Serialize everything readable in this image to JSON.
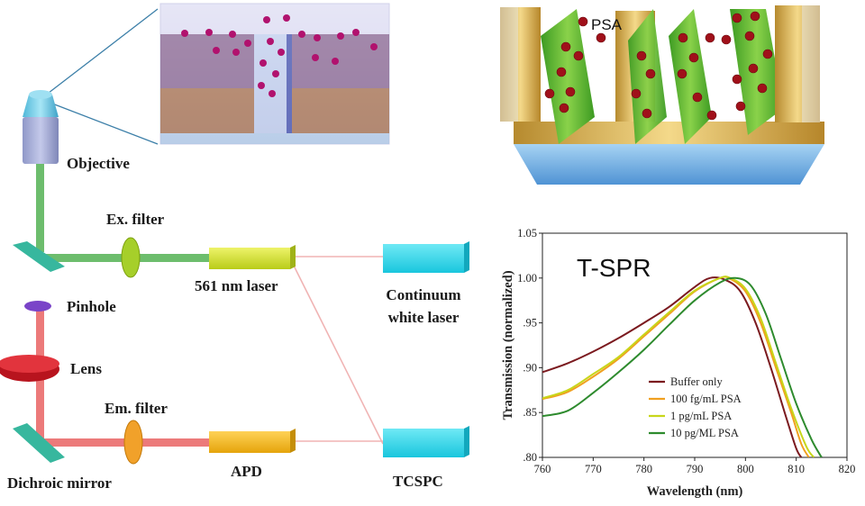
{
  "optics": {
    "objective": "Objective",
    "ex_filter": "Ex. filter",
    "laser_561": "561 nm laser",
    "continuum_1": "Continuum",
    "continuum_2": "white laser",
    "pinhole": "Pinhole",
    "lens": "Lens",
    "em_filter": "Em. filter",
    "dichroic": "Dichroic mirror",
    "apd": "APD",
    "tcspc": "TCSPC"
  },
  "nano": {
    "psa_label": "PSA"
  },
  "colors": {
    "buffer_only": "#7b1a1f",
    "psa_100fg": "#f0a020",
    "psa_1pg": "#c8d61a",
    "psa_10pg": "#2e8b2e"
  },
  "chart_data": {
    "type": "line",
    "title": "T-SPR",
    "xlabel": "Wavelength (nm)",
    "ylabel": "Transmission (normalized)",
    "xlim": [
      760,
      820
    ],
    "ylim": [
      0.8,
      1.05
    ],
    "x_ticks": [
      "760",
      "770",
      "780",
      "790",
      "800",
      "810",
      "820"
    ],
    "y_ticks": [
      "1.05",
      "1.00",
      ".95",
      ".90",
      ".85",
      ".80"
    ],
    "legend_position": "lower-right",
    "series": [
      {
        "name": "Buffer only",
        "color": "#7b1a1f",
        "x": [
          760,
          765,
          770,
          775,
          780,
          785,
          790,
          793,
          796,
          799,
          802,
          805,
          808,
          810,
          811
        ],
        "y": [
          0.895,
          0.905,
          0.918,
          0.933,
          0.95,
          0.968,
          0.99,
          1.0,
          0.998,
          0.985,
          0.95,
          0.9,
          0.845,
          0.81,
          0.8
        ]
      },
      {
        "name": "100 fg/mL PSA",
        "color": "#f0a020",
        "x": [
          760,
          765,
          770,
          775,
          780,
          785,
          790,
          795,
          797,
          800,
          803,
          806,
          809,
          811,
          812.5
        ],
        "y": [
          0.865,
          0.873,
          0.89,
          0.91,
          0.935,
          0.96,
          0.985,
          1.0,
          0.999,
          0.985,
          0.95,
          0.9,
          0.85,
          0.815,
          0.8
        ]
      },
      {
        "name": "1 pg/mL PSA",
        "color": "#c8d61a",
        "x": [
          760,
          765,
          770,
          775,
          780,
          785,
          790,
          795,
          797,
          800,
          803,
          806,
          809,
          812,
          813.5
        ],
        "y": [
          0.866,
          0.875,
          0.893,
          0.912,
          0.937,
          0.962,
          0.986,
          1.0,
          1.0,
          0.988,
          0.955,
          0.905,
          0.855,
          0.812,
          0.8
        ]
      },
      {
        "name": "10 pg/ML PSA",
        "color": "#2e8b2e",
        "x": [
          760,
          765,
          770,
          775,
          780,
          785,
          790,
          795,
          798,
          801,
          804,
          807,
          810,
          813,
          815
        ],
        "y": [
          0.846,
          0.852,
          0.872,
          0.895,
          0.92,
          0.948,
          0.975,
          0.995,
          1.0,
          0.992,
          0.96,
          0.91,
          0.86,
          0.82,
          0.8
        ]
      }
    ]
  }
}
